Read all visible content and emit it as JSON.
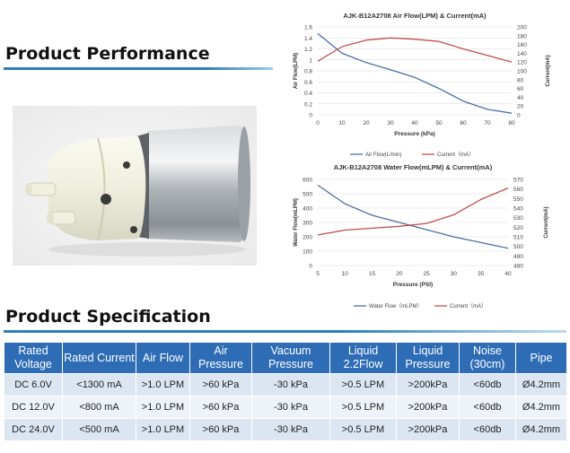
{
  "performance_title": "Product Performance",
  "spec_title": "Product Specification",
  "colors": {
    "header_bg": "#2e6db5",
    "row_odd": "#dce6f2",
    "row_even": "#eef3f9",
    "underline": "#2e7fbf",
    "series_blue": "#4a6fa5",
    "series_red": "#c0504d"
  },
  "chart_data": [
    {
      "type": "line",
      "title": "AJK-B12A2708 Air Flow(LPM) & Current(mA)",
      "xlabel": "Pressure (kPa)",
      "ylabel": "Air Flow(LPM)",
      "y2label": "Current(mA)",
      "x": [
        0,
        10,
        20,
        30,
        40,
        50,
        60,
        70,
        80
      ],
      "xticks": [
        "0",
        "10",
        "20",
        "30",
        "40",
        "50",
        "60",
        "70",
        "80"
      ],
      "ylim": [
        0,
        1.6
      ],
      "yticks": [
        "0",
        "0.2",
        "0.4",
        "0.6",
        "0.8",
        "1",
        "1.2",
        "1.4",
        "1.6"
      ],
      "y2lim": [
        0,
        200
      ],
      "y2ticks": [
        "0",
        "20",
        "40",
        "60",
        "80",
        "100",
        "120",
        "140",
        "160",
        "180",
        "200"
      ],
      "grid": true,
      "legend_position": "bottom",
      "series": [
        {
          "name": "Air Flow(L/min)",
          "axis": "left",
          "color": "#4a6fa5",
          "values": [
            1.48,
            1.12,
            0.95,
            0.82,
            0.68,
            0.48,
            0.25,
            0.1,
            0.03
          ]
        },
        {
          "name": "Current（mA）",
          "axis": "right",
          "color": "#c0504d",
          "values": [
            122,
            155,
            170,
            175,
            172,
            167,
            150,
            135,
            120
          ]
        }
      ]
    },
    {
      "type": "line",
      "title": "AJK-B12A2708 Water Flow(mLPM) & Current(mA)",
      "xlabel": "Pressure (PSI)",
      "ylabel": "Water Flow(mLPM)",
      "y2label": "Current(mA)",
      "x": [
        5,
        10,
        15,
        20,
        25,
        30,
        35,
        40
      ],
      "xticks": [
        "5",
        "10",
        "15",
        "20",
        "25",
        "30",
        "35",
        "40"
      ],
      "ylim": [
        0,
        600
      ],
      "yticks": [
        "0",
        "100",
        "200",
        "300",
        "400",
        "500",
        "600"
      ],
      "y2lim": [
        480,
        570
      ],
      "y2ticks": [
        "480",
        "490",
        "500",
        "510",
        "520",
        "530",
        "540",
        "550",
        "560",
        "570"
      ],
      "grid": true,
      "legend_position": "bottom",
      "series": [
        {
          "name": "Water Flow（mLPM）",
          "axis": "left",
          "color": "#4a6fa5",
          "values": [
            560,
            430,
            350,
            300,
            250,
            200,
            160,
            120
          ]
        },
        {
          "name": "Current（mA）",
          "axis": "right",
          "color": "#c0504d",
          "values": [
            512,
            517,
            519,
            521,
            524,
            533,
            549,
            561
          ]
        }
      ]
    }
  ],
  "spec_table": {
    "headers": [
      "Rated Voltage",
      "Rated Current",
      "Air Flow",
      "Air Pressure",
      "Vacuum Pressure",
      "Liquid 2.2Flow",
      "Liquid Pressure",
      "Noise (30cm)",
      "Pipe"
    ],
    "rows": [
      [
        "DC  6.0V",
        "<1300 mA",
        ">1.0 LPM",
        ">60 kPa",
        "-30 kPa",
        ">0.5 LPM",
        ">200kPa",
        "<60db",
        "Ø4.2mm"
      ],
      [
        "DC 12.0V",
        "<800 mA",
        ">1.0 LPM",
        ">60 kPa",
        "-30 kPa",
        ">0.5 LPM",
        ">200kPa",
        "<60db",
        "Ø4.2mm"
      ],
      [
        "DC 24.0V",
        "<500 mA",
        ">1.0 LPM",
        ">60 kPa",
        "-30 kPa",
        ">0.5 LPM",
        ">200kPa",
        "<60db",
        "Ø4.2mm"
      ]
    ]
  }
}
